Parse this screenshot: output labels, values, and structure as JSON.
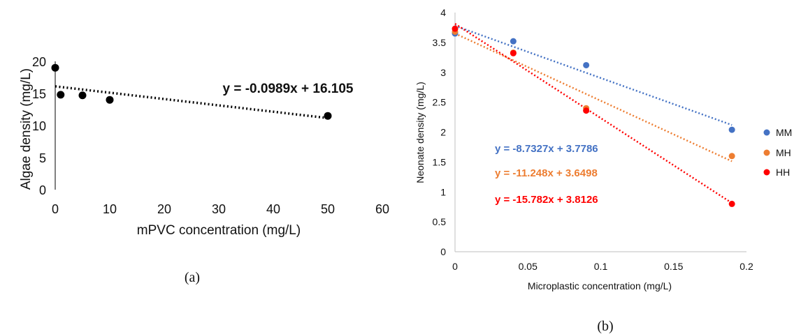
{
  "charts": {
    "chart_data": [
      {
        "type": "scatter",
        "caption": "(a)",
        "xlabel": "mPVC concentration (mg/L)",
        "ylabel": "Algae density (mg/L)",
        "xlim": [
          0,
          60
        ],
        "ylim": [
          0,
          20
        ],
        "xticks": [
          0,
          10,
          20,
          30,
          40,
          50,
          60
        ],
        "yticks": [
          0,
          5,
          10,
          15,
          20
        ],
        "grid": false,
        "legend": "none",
        "series": [
          {
            "x": [
              0,
              1,
              5,
              10,
              50
            ],
            "y": [
              19.0,
              14.8,
              14.7,
              14.0,
              11.5
            ],
            "color": "#000000",
            "trendline": {
              "slope": -0.0989,
              "intercept": 16.105,
              "x_range": [
                0,
                50
              ],
              "style": "dotted"
            },
            "equation": "y = -0.0989x + 16.105"
          }
        ]
      },
      {
        "type": "scatter",
        "caption": "(b)",
        "xlabel": "Microplastic concentration (mg/L)",
        "ylabel": "Neonate density (mg/L)",
        "xlim": [
          0,
          0.2
        ],
        "ylim": [
          0,
          4
        ],
        "xticks": [
          "0",
          "0.05",
          "0.1",
          "0.15",
          "0.2"
        ],
        "yticks": [
          "0",
          "0.5",
          "1",
          "1.5",
          "2",
          "2.5",
          "3",
          "3.5",
          "4"
        ],
        "grid": false,
        "legend": "right",
        "series": [
          {
            "name": "MM",
            "color": "#4472c4",
            "x": [
              0,
              0.04,
              0.09,
              0.19
            ],
            "y": [
              3.65,
              3.52,
              3.12,
              2.04
            ],
            "trendline": {
              "slope": -8.7327,
              "intercept": 3.7786,
              "x_range": [
                0,
                0.19
              ],
              "style": "dotted"
            },
            "equation": "y = -8.7327x + 3.7786"
          },
          {
            "name": "MH",
            "color": "#ed7d31",
            "x": [
              0,
              0.04,
              0.09,
              0.19
            ],
            "y": [
              3.68,
              3.33,
              2.4,
              1.6
            ],
            "trendline": {
              "slope": -11.248,
              "intercept": 3.6498,
              "x_range": [
                0,
                0.19
              ],
              "style": "dotted"
            },
            "equation": "y = -11.248x + 3.6498"
          },
          {
            "name": "HH",
            "color": "#ff0000",
            "x": [
              0,
              0.04,
              0.09,
              0.19
            ],
            "y": [
              3.73,
              3.32,
              2.36,
              0.8
            ],
            "trendline": {
              "slope": -15.782,
              "intercept": 3.8126,
              "x_range": [
                0,
                0.19
              ],
              "style": "dotted"
            },
            "equation": "y = -15.782x + 3.8126"
          }
        ]
      }
    ]
  }
}
